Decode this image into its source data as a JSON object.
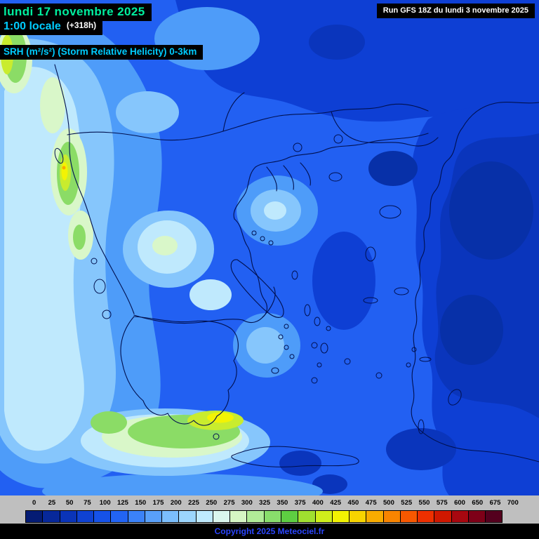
{
  "header": {
    "date": "lundi 17 novembre 2025",
    "time": "1:00 locale",
    "offset": "(+318h)",
    "parameter": "SRH (m²/s²) (Storm Relative Helicity) 0-3km",
    "run": "Run GFS 18Z du lundi 3 novembre 2025"
  },
  "footer": {
    "copyright": "Copyright 2025 Meteociel.fr"
  },
  "legend": {
    "items": [
      {
        "label": "0",
        "color": "#051c74"
      },
      {
        "label": "25",
        "color": "#07289a"
      },
      {
        "label": "50",
        "color": "#0a34b8"
      },
      {
        "label": "75",
        "color": "#0f42d2"
      },
      {
        "label": "100",
        "color": "#1652e8"
      },
      {
        "label": "125",
        "color": "#2264f4"
      },
      {
        "label": "150",
        "color": "#3b82f8"
      },
      {
        "label": "175",
        "color": "#59a0fa"
      },
      {
        "label": "200",
        "color": "#7bbefc"
      },
      {
        "label": "225",
        "color": "#9cd6fd"
      },
      {
        "label": "250",
        "color": "#bfeafe"
      },
      {
        "label": "275",
        "color": "#daf6ee"
      },
      {
        "label": "300",
        "color": "#d6f6c4"
      },
      {
        "label": "325",
        "color": "#b1ec98"
      },
      {
        "label": "350",
        "color": "#89de6c"
      },
      {
        "label": "375",
        "color": "#5ece42"
      },
      {
        "label": "400",
        "color": "#a0e030"
      },
      {
        "label": "425",
        "color": "#cfee1c"
      },
      {
        "label": "450",
        "color": "#f2f202"
      },
      {
        "label": "475",
        "color": "#f8d400"
      },
      {
        "label": "500",
        "color": "#f8ac00"
      },
      {
        "label": "525",
        "color": "#f88400"
      },
      {
        "label": "550",
        "color": "#f85800"
      },
      {
        "label": "575",
        "color": "#ee3000"
      },
      {
        "label": "600",
        "color": "#d01800"
      },
      {
        "label": "650",
        "color": "#a80810"
      },
      {
        "label": "675",
        "color": "#7e0018"
      },
      {
        "label": "700",
        "color": "#54001e"
      }
    ]
  }
}
